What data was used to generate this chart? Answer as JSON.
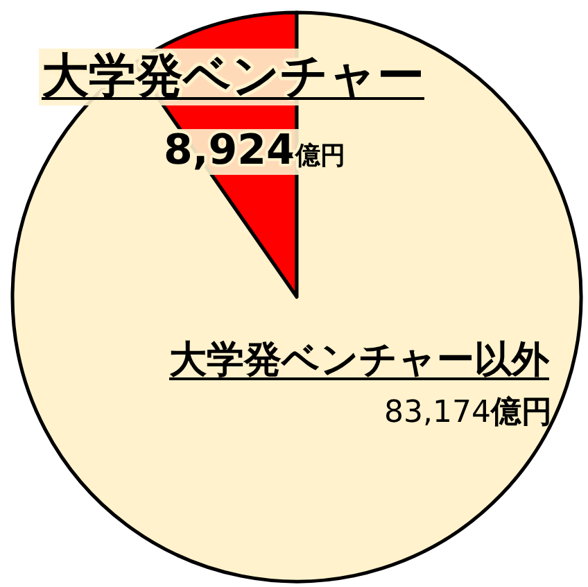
{
  "chart_data": {
    "type": "pie",
    "categories": [
      "大学発ベンチャー",
      "大学発ベンチャー以外"
    ],
    "values": [
      8924,
      83174
    ],
    "colors": [
      "#ff0000",
      "#fff2cc"
    ],
    "value_labels": [
      "8,924億円",
      "83,174億円"
    ]
  }
}
